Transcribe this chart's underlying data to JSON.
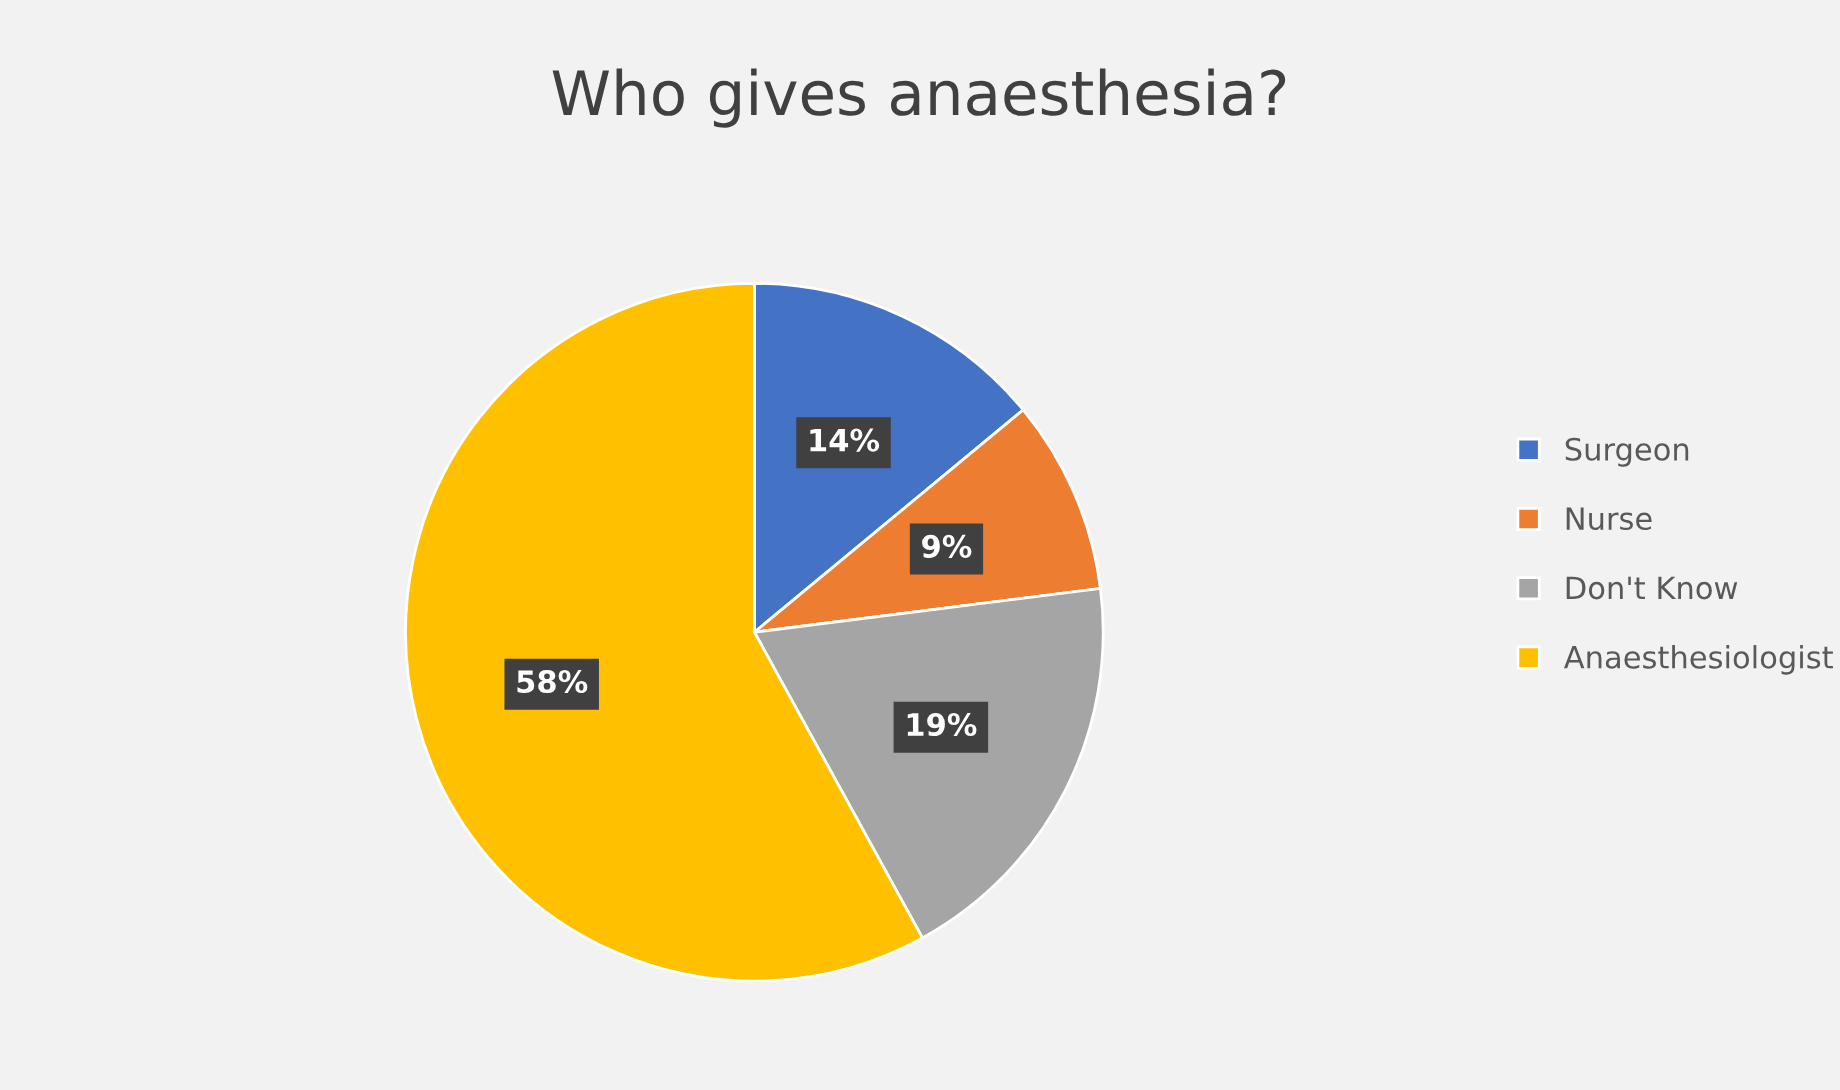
{
  "chart_data": {
    "type": "pie",
    "title": "Who gives anaesthesia?",
    "categories": [
      "Surgeon",
      "Nurse",
      "Don't Know",
      "Anaesthesiologist"
    ],
    "values": [
      14,
      9,
      19,
      58
    ],
    "colors": [
      "#4472c4",
      "#ed7d31",
      "#a5a5a5",
      "#ffc000"
    ],
    "value_labels": [
      "14%",
      "9%",
      "19%",
      "58%"
    ],
    "legend": "right"
  }
}
